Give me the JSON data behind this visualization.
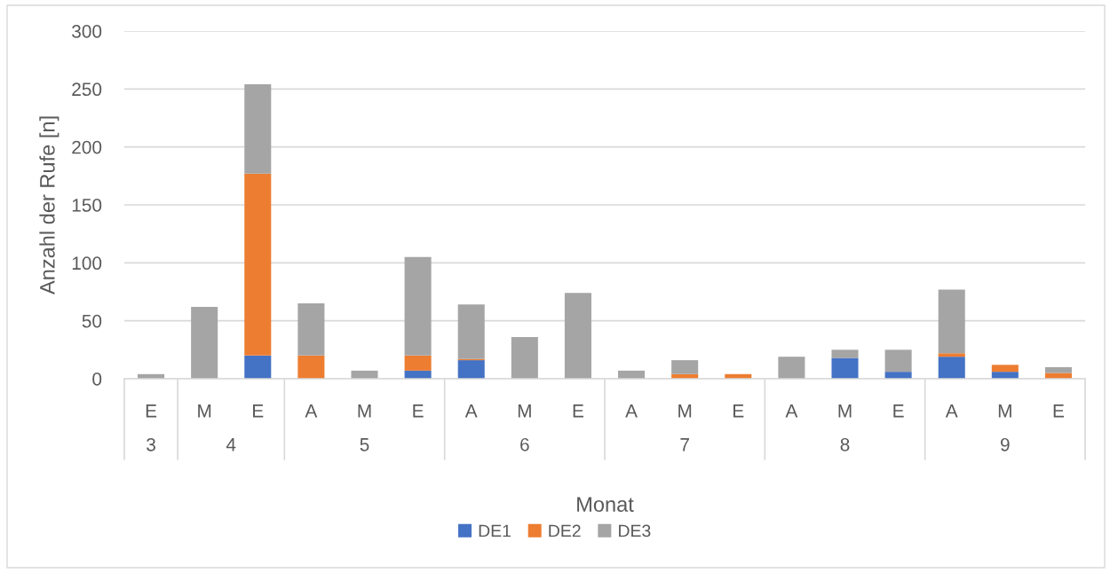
{
  "chart_data": {
    "type": "bar",
    "stacked": true,
    "xlabel": "Monat",
    "ylabel": "Anzahl der Rufe [n]",
    "categories": [
      "E",
      "M",
      "E",
      "A",
      "M",
      "E",
      "A",
      "M",
      "E",
      "A",
      "M",
      "E",
      "A",
      "M",
      "E",
      "A",
      "M",
      "E"
    ],
    "series": [
      {
        "name": "DE1",
        "color": "#4472c4",
        "values": [
          0,
          0,
          20,
          0,
          0,
          7,
          16,
          0,
          0,
          0,
          0,
          0,
          0,
          18,
          6,
          19,
          6,
          0
        ]
      },
      {
        "name": "DE2",
        "color": "#ed7d31",
        "values": [
          0,
          0,
          157,
          20,
          0,
          13,
          1,
          0,
          0,
          0,
          4,
          4,
          0,
          0,
          0,
          3,
          6,
          5
        ]
      },
      {
        "name": "DE3",
        "color": "#a5a5a5",
        "values": [
          4,
          62,
          77,
          45,
          7,
          85,
          47,
          36,
          74,
          7,
          12,
          0,
          19,
          7,
          19,
          55,
          0,
          5
        ]
      }
    ],
    "annotations": [
      "3",
      "4",
      "5",
      "6",
      "7",
      "8",
      "9"
    ],
    "ylim": [
      0,
      300
    ],
    "yticks": [
      0,
      50,
      100,
      150,
      200,
      250,
      300
    ],
    "grid": "y",
    "legend": "bottom"
  }
}
